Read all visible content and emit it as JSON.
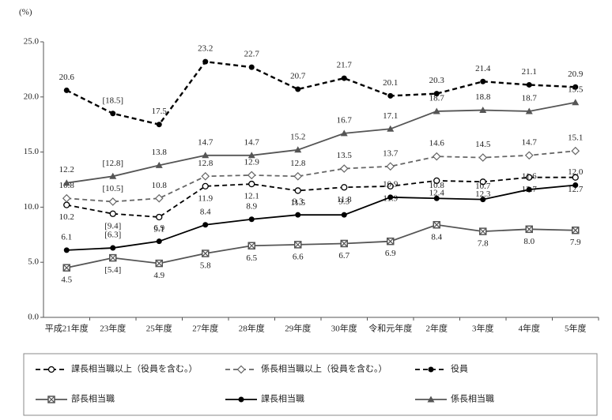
{
  "chart_data": {
    "type": "line",
    "y_unit": "(%)",
    "categories": [
      "平成21年度",
      "23年度",
      "25年度",
      "27年度",
      "28年度",
      "29年度",
      "30年度",
      "令和元年度",
      "2年度",
      "3年度",
      "4年度",
      "5年度"
    ],
    "ylim": [
      0,
      25
    ],
    "yticks": [
      {
        "value": 0,
        "label": "0.0"
      },
      {
        "value": 5,
        "label": "5.0"
      },
      {
        "value": 10,
        "label": "10.0"
      },
      {
        "value": 15,
        "label": "15.0"
      },
      {
        "value": 20,
        "label": "20.0"
      },
      {
        "value": 25,
        "label": "25.0"
      }
    ],
    "series": [
      {
        "name": "課長相当職以上（役員を含む。）",
        "color": "#000000",
        "line_style": "dashed",
        "marker": "circle-open",
        "label_position": "below",
        "values": [
          10.2,
          9.4,
          9.1,
          11.9,
          12.1,
          11.5,
          11.8,
          11.9,
          12.4,
          12.3,
          12.7,
          12.7
        ],
        "value_labels": [
          "10.2",
          "[9.4]",
          "9.1",
          "11.9",
          "12.1",
          "11.5",
          "11.8",
          "11.9",
          "12.4",
          "12.3",
          "12.7",
          "12.7"
        ]
      },
      {
        "name": "係長相当職以上（役員を含む。）",
        "color": "#666666",
        "line_style": "dashed",
        "marker": "diamond-open",
        "label_position": "above",
        "values": [
          10.8,
          10.5,
          10.8,
          12.8,
          12.9,
          12.8,
          13.5,
          13.7,
          14.6,
          14.5,
          14.7,
          15.1
        ],
        "value_labels": [
          "10.8",
          "[10.5]",
          "10.8",
          "12.8",
          "12.9",
          "12.8",
          "13.5",
          "13.7",
          "14.6",
          "14.5",
          "14.7",
          "15.1"
        ]
      },
      {
        "name": "役員",
        "color": "#000000",
        "line_style": "dashed",
        "marker": "circle-filled",
        "label_position": "above",
        "values": [
          20.6,
          18.5,
          17.5,
          23.2,
          22.7,
          20.7,
          21.7,
          20.1,
          20.3,
          21.4,
          21.1,
          20.9
        ],
        "value_labels": [
          "20.6",
          "[18.5]",
          "17.5",
          "23.2",
          "22.7",
          "20.7",
          "21.7",
          "20.1",
          "20.3",
          "21.4",
          "21.1",
          "20.9"
        ]
      },
      {
        "name": "部長相当職",
        "color": "#555555",
        "line_style": "solid",
        "marker": "square-x",
        "label_position": "below",
        "values": [
          4.5,
          5.4,
          4.9,
          5.8,
          6.5,
          6.6,
          6.7,
          6.9,
          8.4,
          7.8,
          8.0,
          7.9
        ],
        "value_labels": [
          "4.5",
          "[5.4]",
          "4.9",
          "5.8",
          "6.5",
          "6.6",
          "6.7",
          "6.9",
          "8.4",
          "7.8",
          "8.0",
          "7.9"
        ]
      },
      {
        "name": "課長相当職",
        "color": "#000000",
        "line_style": "solid",
        "marker": "circle-filled",
        "label_position": "above",
        "values": [
          6.1,
          6.3,
          6.9,
          8.4,
          8.9,
          9.3,
          9.3,
          10.9,
          10.8,
          10.7,
          11.6,
          12.0
        ],
        "value_labels": [
          "6.1",
          "[6.3]",
          "6.9",
          "8.4",
          "8.9",
          "9.3",
          "9.3",
          "10.9",
          "10.8",
          "10.7",
          "11.6",
          "12.0"
        ]
      },
      {
        "name": "係長相当職",
        "color": "#555555",
        "line_style": "solid",
        "marker": "triangle-filled",
        "label_position": "above",
        "values": [
          12.2,
          12.8,
          13.8,
          14.7,
          14.7,
          15.2,
          16.7,
          17.1,
          18.7,
          18.8,
          18.7,
          19.5
        ],
        "value_labels": [
          "12.2",
          "[12.8]",
          "13.8",
          "14.7",
          "14.7",
          "15.2",
          "16.7",
          "17.1",
          "18.7",
          "18.8",
          "18.7",
          "19.5"
        ]
      }
    ]
  }
}
